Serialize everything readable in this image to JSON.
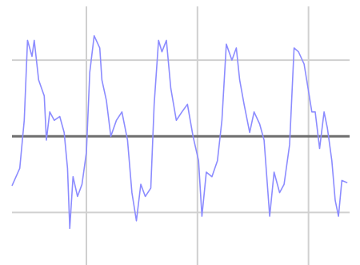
{
  "chart_data": {
    "type": "line",
    "xlim": [
      0.33,
      3.37
    ],
    "xticks": [
      1,
      2,
      3
    ],
    "ylim": [
      -1.69,
      1.79
    ],
    "yticks": [
      -1,
      0,
      1
    ],
    "grid": true,
    "series": [
      {
        "color": "#8c8cff",
        "x": [
          0.33,
          0.4,
          0.44,
          0.47,
          0.51,
          0.53,
          0.57,
          0.62,
          0.64,
          0.67,
          0.71,
          0.76,
          0.8,
          0.83,
          0.85,
          0.88,
          0.92,
          0.96,
          1.0,
          1.03,
          1.07,
          1.12,
          1.14,
          1.18,
          1.22,
          1.27,
          1.32,
          1.37,
          1.41,
          1.45,
          1.49,
          1.53,
          1.58,
          1.61,
          1.65,
          1.68,
          1.72,
          1.76,
          1.81,
          1.86,
          1.91,
          1.96,
          2.01,
          2.04,
          2.08,
          2.13,
          2.18,
          2.22,
          2.26,
          2.31,
          2.35,
          2.38,
          2.42,
          2.47,
          2.51,
          2.56,
          2.6,
          2.65,
          2.69,
          2.74,
          2.78,
          2.83,
          2.87,
          2.91,
          2.96,
          2.99,
          3.03,
          3.06,
          3.1,
          3.14,
          3.17,
          3.21,
          3.24,
          3.27,
          3.3,
          3.35
        ],
        "values": [
          -0.65,
          -0.42,
          0.21,
          1.26,
          1.05,
          1.26,
          0.74,
          0.53,
          -0.05,
          0.32,
          0.21,
          0.26,
          0.05,
          -0.42,
          -1.21,
          -0.53,
          -0.79,
          -0.63,
          -0.21,
          0.84,
          1.32,
          1.16,
          0.74,
          0.47,
          0,
          0.21,
          0.32,
          -0.05,
          -0.74,
          -1.11,
          -0.63,
          -0.79,
          -0.68,
          0.42,
          1.26,
          1.11,
          1.26,
          0.63,
          0.21,
          0.32,
          0.42,
          0,
          -0.32,
          -1.05,
          -0.47,
          -0.53,
          -0.32,
          0.21,
          1.21,
          1.0,
          1.16,
          0.74,
          0.42,
          0.05,
          0.32,
          0.16,
          -0.05,
          -1.05,
          -0.47,
          -0.74,
          -0.63,
          -0.11,
          1.16,
          1.11,
          0.95,
          0.68,
          0.32,
          0.32,
          -0.16,
          0.32,
          0.11,
          -0.32,
          -0.84,
          -1.05,
          -0.58,
          -0.61
        ]
      }
    ]
  }
}
